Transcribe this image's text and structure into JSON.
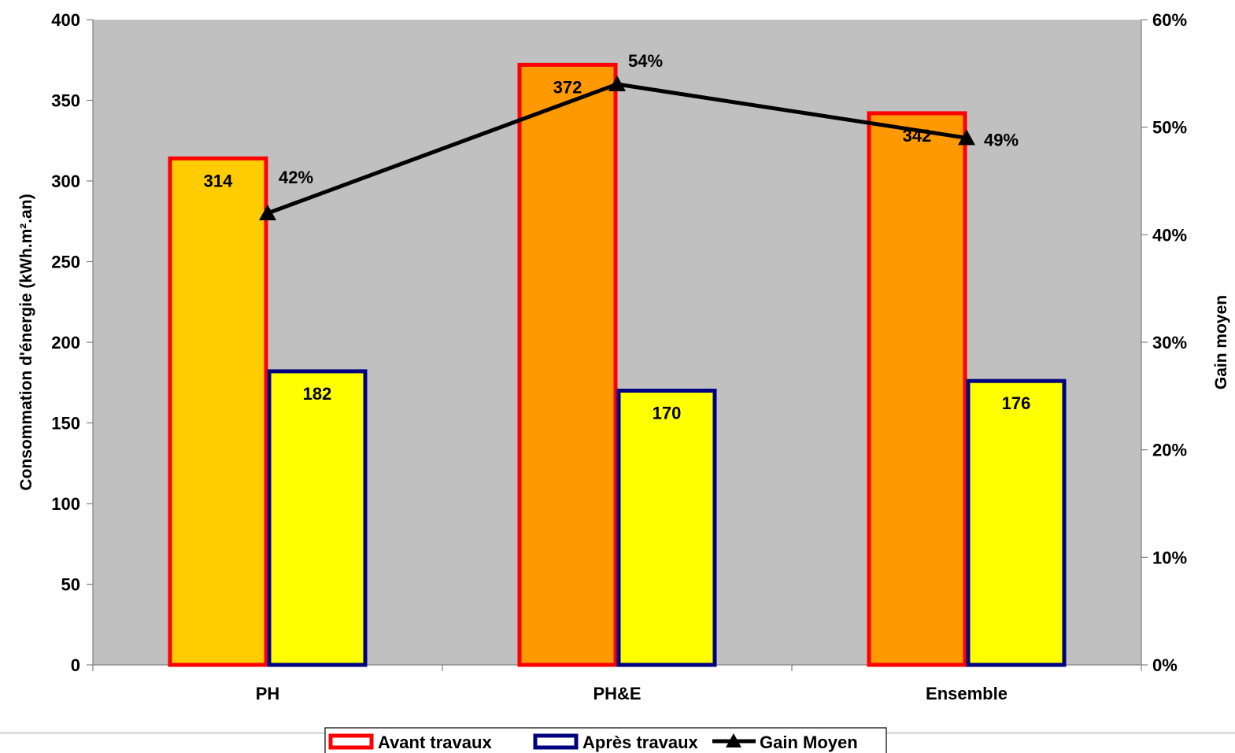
{
  "chart_data": {
    "type": "bar",
    "categories": [
      "PH",
      "PH&E",
      "Ensemble"
    ],
    "series": [
      {
        "name": "Avant travaux",
        "type": "bar",
        "axis": "left",
        "values": [
          314,
          372,
          342
        ],
        "fills": [
          "#FFCC00",
          "#FF9900",
          "#FF9900"
        ],
        "border": "#FF0000",
        "labels": [
          "314",
          "372",
          "342"
        ]
      },
      {
        "name": "Après travaux",
        "type": "bar",
        "axis": "left",
        "values": [
          182,
          170,
          176
        ],
        "fills": [
          "#FFFF00",
          "#FFFF00",
          "#FFFF00"
        ],
        "border": "#000080",
        "labels": [
          "182",
          "170",
          "176"
        ]
      },
      {
        "name": "Gain Moyen",
        "type": "line",
        "axis": "right",
        "values": [
          42,
          54,
          49
        ],
        "color": "#000000",
        "marker": "triangle",
        "labels": [
          "42%",
          "54%",
          "49%"
        ]
      }
    ],
    "ylabel": "Consommation d'énergie (kWh.m².an)",
    "ylim": [
      0,
      400
    ],
    "yticks": [
      0,
      50,
      100,
      150,
      200,
      250,
      300,
      350,
      400
    ],
    "ytick_labels": [
      "0",
      "50",
      "100",
      "150",
      "200",
      "250",
      "300",
      "350",
      "400"
    ],
    "y2label": "Gain moyen",
    "y2lim": [
      0,
      60
    ],
    "y2ticks": [
      0,
      10,
      20,
      30,
      40,
      50,
      60
    ],
    "y2tick_labels": [
      "0%",
      "10%",
      "20%",
      "30%",
      "40%",
      "50%",
      "60%"
    ],
    "plot_background": "#C0C0C0",
    "grid": false,
    "legend": "bottom-center"
  }
}
